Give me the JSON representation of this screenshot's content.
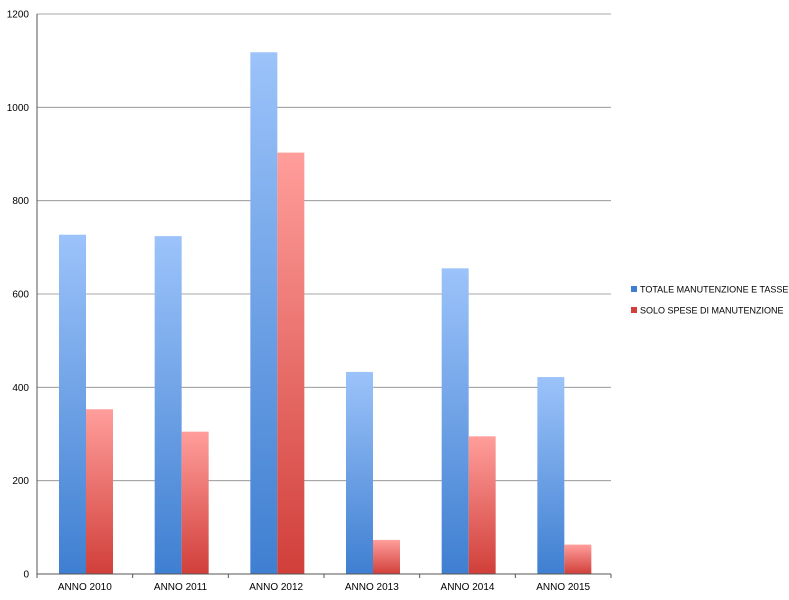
{
  "chart_data": {
    "type": "bar",
    "title": "",
    "xlabel": "",
    "ylabel": "",
    "categories": [
      "ANNO 2010",
      "ANNO 2011",
      "ANNO 2012",
      "ANNO 2013",
      "ANNO 2014",
      "ANNO 2015"
    ],
    "series": [
      {
        "name": "TOTALE MANUTENZIONE E TASSE",
        "values": [
          727,
          724,
          1118,
          433,
          655,
          422
        ],
        "color_top": "#9cc3fa",
        "color_bottom": "#3f7fd1"
      },
      {
        "name": "SOLO SPESE DI MANUTENZIONE",
        "values": [
          353,
          305,
          903,
          73,
          295,
          63
        ],
        "color_top": "#ff9e9b",
        "color_bottom": "#d13f3a"
      }
    ],
    "ylim": [
      0,
      1200
    ],
    "yticks": [
      0,
      200,
      400,
      600,
      800,
      1000,
      1200
    ],
    "grid": true,
    "legend_position": "right"
  }
}
